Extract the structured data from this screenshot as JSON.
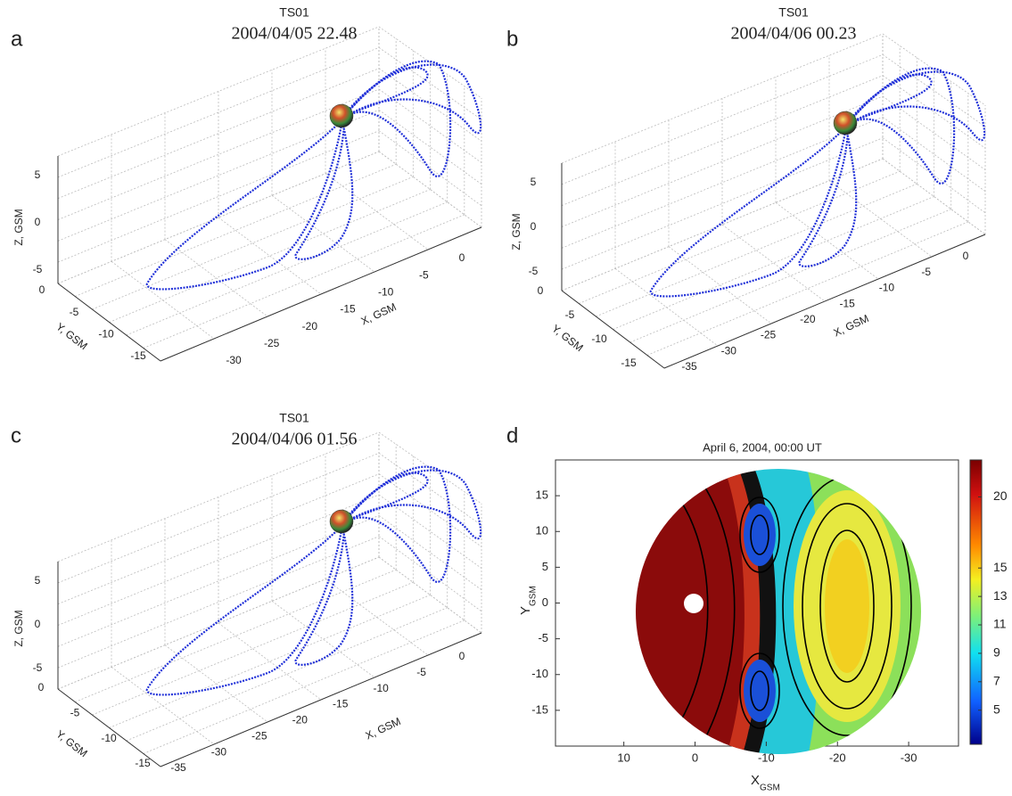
{
  "panels": [
    {
      "label": "a",
      "title": "TS01",
      "time": "2004/04/05 22.48",
      "z_label": "Z, GSM",
      "y_label": "Y, GSM",
      "x_label": "X, GSM",
      "z_ticks": [
        5,
        0,
        -5
      ],
      "y_ticks": [
        0,
        -5,
        -10,
        -15
      ],
      "x_ticks": [
        0,
        -5,
        -10,
        -15,
        -20,
        -25,
        -30
      ]
    },
    {
      "label": "b",
      "title": "TS01",
      "time": "2004/04/06 00.23",
      "z_label": "Z, GSM",
      "y_label": "Y, GSM",
      "x_label": "X, GSM",
      "z_ticks": [
        5,
        0,
        -5
      ],
      "y_ticks": [
        0,
        -5,
        -10,
        -15
      ],
      "x_ticks": [
        0,
        -5,
        -10,
        -15,
        -20,
        -25,
        -30,
        -35
      ]
    },
    {
      "label": "c",
      "title": "TS01",
      "time": "2004/04/06 01.56",
      "z_label": "Z, GSM",
      "y_label": "Y, GSM",
      "x_label": "X, GSM",
      "z_ticks": [
        5,
        0,
        -5
      ],
      "y_ticks": [
        0,
        -5,
        -10,
        -15
      ],
      "x_ticks": [
        0,
        -5,
        -10,
        -15,
        -20,
        -25,
        -30,
        -35
      ]
    }
  ],
  "map": {
    "label": "d",
    "title": "April 6, 2004, 00:00 UT",
    "x_label": "X",
    "x_label_sub": "GSM",
    "y_label": "Y",
    "y_label_sub": "GSM",
    "xlim": [
      19.6,
      -37
    ],
    "ylim": [
      -20,
      20
    ],
    "xticks": [
      10,
      0,
      -10,
      -20,
      -30
    ],
    "yticks": [
      15,
      10,
      5,
      0,
      -5,
      -10,
      -15
    ],
    "colorbar_lim": [
      2.6,
      22.6
    ],
    "colorbar_ticks": [
      20,
      15,
      13,
      11,
      9,
      7,
      5
    ]
  }
}
